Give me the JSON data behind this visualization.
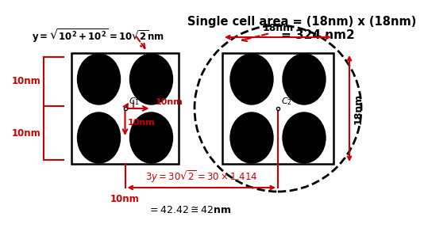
{
  "title_line1": "Single cell area = (18nm) x (18nm)",
  "title_line2": "= 324 nm2",
  "bg_color": "#ffffff",
  "red": "#cc0000",
  "black": "#000000"
}
